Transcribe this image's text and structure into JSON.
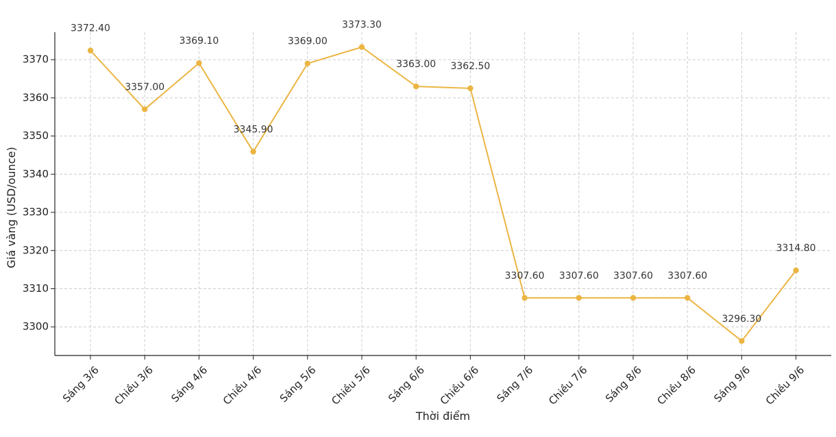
{
  "chart_data": {
    "type": "line",
    "title": "",
    "xlabel": "Thời điểm",
    "ylabel": "Giá vàng (USD/ounce)",
    "categories": [
      "Sáng 3/6",
      "Chiều 3/6",
      "Sáng 4/6",
      "Chiều 4/6",
      "Sáng 5/6",
      "Chiều 5/6",
      "Sáng 6/6",
      "Chiều 6/6",
      "Sáng 7/6",
      "Chiều 7/6",
      "Sáng 8/6",
      "Chiều 8/6",
      "Sáng 9/6",
      "Chiều 9/6"
    ],
    "series": [
      {
        "values": [
          3372.4,
          3357.0,
          3369.1,
          3345.9,
          3369.0,
          3373.3,
          3363.0,
          3362.5,
          3307.6,
          3307.6,
          3307.6,
          3307.6,
          3296.3,
          3314.8
        ],
        "value_labels": [
          "3372.40",
          "3357.00",
          "3369.10",
          "3345.90",
          "3369.00",
          "3373.30",
          "3363.00",
          "3362.50",
          "3307.60",
          "3307.60",
          "3307.60",
          "3307.60",
          "3296.30",
          "3314.80"
        ],
        "color": "#ebb542"
      }
    ],
    "yticks": [
      3300,
      3310,
      3320,
      3330,
      3340,
      3350,
      3360,
      3370
    ],
    "ylim": [
      3292.5,
      3377.2
    ],
    "grid": true,
    "legend": "none"
  }
}
